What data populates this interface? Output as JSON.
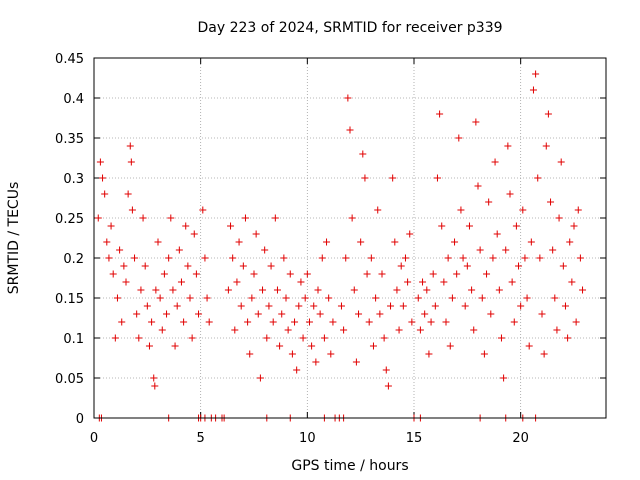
{
  "chart_data": {
    "type": "scatter",
    "title": "Day 223 of 2024, SRMTID for receiver p339",
    "xlabel": "GPS time / hours",
    "ylabel": "SRMTID / TECUs",
    "xlim": [
      0,
      24
    ],
    "ylim": [
      0,
      0.45
    ],
    "grid": true,
    "marker": "plus",
    "color": "#e00000",
    "xticks": [
      0,
      5,
      10,
      15,
      20
    ],
    "xtick_labels": [
      "0",
      "5",
      "10",
      "15",
      "20"
    ],
    "yticks": [
      0,
      0.05,
      0.1,
      0.15,
      0.2,
      0.25,
      0.3,
      0.35,
      0.4,
      0.45
    ],
    "ytick_labels": [
      "0",
      "0.05",
      "0.1",
      "0.15",
      "0.2",
      "0.25",
      "0.3",
      "0.35",
      "0.4",
      "0.45"
    ],
    "series": [
      {
        "name": "SRMTID",
        "points": [
          [
            0.2,
            0.25
          ],
          [
            0.3,
            0.32
          ],
          [
            0.4,
            0.3
          ],
          [
            0.5,
            0.28
          ],
          [
            0.6,
            0.22
          ],
          [
            0.7,
            0.2
          ],
          [
            0.8,
            0.24
          ],
          [
            0.9,
            0.18
          ],
          [
            1.0,
            0.1
          ],
          [
            1.1,
            0.15
          ],
          [
            1.2,
            0.21
          ],
          [
            1.3,
            0.12
          ],
          [
            1.4,
            0.19
          ],
          [
            1.5,
            0.17
          ],
          [
            1.6,
            0.28
          ],
          [
            1.7,
            0.34
          ],
          [
            1.75,
            0.32
          ],
          [
            1.8,
            0.26
          ],
          [
            1.9,
            0.2
          ],
          [
            2.0,
            0.13
          ],
          [
            2.1,
            0.1
          ],
          [
            2.2,
            0.16
          ],
          [
            2.3,
            0.25
          ],
          [
            2.4,
            0.19
          ],
          [
            2.5,
            0.14
          ],
          [
            2.6,
            0.09
          ],
          [
            2.7,
            0.12
          ],
          [
            2.8,
            0.05
          ],
          [
            2.85,
            0.04
          ],
          [
            2.9,
            0.16
          ],
          [
            3.0,
            0.22
          ],
          [
            3.1,
            0.15
          ],
          [
            3.2,
            0.11
          ],
          [
            3.3,
            0.18
          ],
          [
            3.4,
            0.13
          ],
          [
            3.5,
            0.2
          ],
          [
            3.6,
            0.25
          ],
          [
            3.7,
            0.16
          ],
          [
            3.8,
            0.09
          ],
          [
            3.9,
            0.14
          ],
          [
            4.0,
            0.21
          ],
          [
            4.1,
            0.17
          ],
          [
            4.2,
            0.12
          ],
          [
            4.3,
            0.24
          ],
          [
            4.4,
            0.19
          ],
          [
            4.5,
            0.15
          ],
          [
            4.6,
            0.1
          ],
          [
            4.7,
            0.23
          ],
          [
            4.8,
            0.18
          ],
          [
            4.9,
            0.13
          ],
          [
            5.0,
            0.0
          ],
          [
            5.1,
            0.26
          ],
          [
            5.2,
            0.2
          ],
          [
            5.3,
            0.15
          ],
          [
            5.4,
            0.12
          ],
          [
            5.5,
            0.0
          ],
          [
            6.0,
            0.0
          ],
          [
            6.3,
            0.16
          ],
          [
            6.4,
            0.24
          ],
          [
            6.5,
            0.2
          ],
          [
            6.6,
            0.11
          ],
          [
            6.7,
            0.17
          ],
          [
            6.8,
            0.22
          ],
          [
            6.9,
            0.14
          ],
          [
            7.0,
            0.19
          ],
          [
            7.1,
            0.25
          ],
          [
            7.2,
            0.12
          ],
          [
            7.3,
            0.08
          ],
          [
            7.4,
            0.15
          ],
          [
            7.5,
            0.18
          ],
          [
            7.6,
            0.23
          ],
          [
            7.7,
            0.13
          ],
          [
            7.8,
            0.05
          ],
          [
            7.9,
            0.16
          ],
          [
            8.0,
            0.21
          ],
          [
            8.1,
            0.1
          ],
          [
            8.2,
            0.14
          ],
          [
            8.3,
            0.19
          ],
          [
            8.4,
            0.12
          ],
          [
            8.5,
            0.25
          ],
          [
            8.6,
            0.16
          ],
          [
            8.7,
            0.09
          ],
          [
            8.8,
            0.13
          ],
          [
            8.9,
            0.2
          ],
          [
            9.0,
            0.15
          ],
          [
            9.1,
            0.11
          ],
          [
            9.2,
            0.18
          ],
          [
            9.3,
            0.08
          ],
          [
            9.4,
            0.12
          ],
          [
            9.5,
            0.06
          ],
          [
            9.6,
            0.14
          ],
          [
            9.7,
            0.17
          ],
          [
            9.8,
            0.1
          ],
          [
            9.9,
            0.15
          ],
          [
            10.0,
            0.18
          ],
          [
            10.1,
            0.12
          ],
          [
            10.2,
            0.09
          ],
          [
            10.3,
            0.14
          ],
          [
            10.4,
            0.07
          ],
          [
            10.5,
            0.16
          ],
          [
            10.6,
            0.13
          ],
          [
            10.7,
            0.2
          ],
          [
            10.8,
            0.1
          ],
          [
            10.9,
            0.22
          ],
          [
            11.0,
            0.15
          ],
          [
            11.1,
            0.08
          ],
          [
            11.2,
            0.12
          ],
          [
            11.3,
            0.0
          ],
          [
            11.5,
            0.0
          ],
          [
            11.6,
            0.14
          ],
          [
            11.7,
            0.11
          ],
          [
            11.8,
            0.2
          ],
          [
            11.9,
            0.4
          ],
          [
            12.0,
            0.36
          ],
          [
            12.1,
            0.25
          ],
          [
            12.2,
            0.16
          ],
          [
            12.3,
            0.07
          ],
          [
            12.4,
            0.13
          ],
          [
            12.5,
            0.22
          ],
          [
            12.6,
            0.33
          ],
          [
            12.7,
            0.3
          ],
          [
            12.8,
            0.18
          ],
          [
            12.9,
            0.12
          ],
          [
            13.0,
            0.2
          ],
          [
            13.1,
            0.09
          ],
          [
            13.2,
            0.15
          ],
          [
            13.3,
            0.26
          ],
          [
            13.4,
            0.13
          ],
          [
            13.5,
            0.18
          ],
          [
            13.6,
            0.1
          ],
          [
            13.7,
            0.06
          ],
          [
            13.8,
            0.04
          ],
          [
            13.9,
            0.14
          ],
          [
            14.0,
            0.3
          ],
          [
            14.1,
            0.22
          ],
          [
            14.2,
            0.16
          ],
          [
            14.3,
            0.11
          ],
          [
            14.4,
            0.19
          ],
          [
            14.5,
            0.14
          ],
          [
            14.6,
            0.2
          ],
          [
            14.7,
            0.17
          ],
          [
            14.8,
            0.23
          ],
          [
            14.9,
            0.12
          ],
          [
            15.0,
            0.0
          ],
          [
            15.2,
            0.15
          ],
          [
            15.3,
            0.11
          ],
          [
            15.4,
            0.17
          ],
          [
            15.5,
            0.13
          ],
          [
            15.6,
            0.16
          ],
          [
            15.7,
            0.08
          ],
          [
            15.8,
            0.12
          ],
          [
            15.9,
            0.18
          ],
          [
            16.0,
            0.14
          ],
          [
            16.1,
            0.3
          ],
          [
            16.2,
            0.38
          ],
          [
            16.3,
            0.24
          ],
          [
            16.4,
            0.17
          ],
          [
            16.5,
            0.12
          ],
          [
            16.6,
            0.2
          ],
          [
            16.7,
            0.09
          ],
          [
            16.8,
            0.15
          ],
          [
            16.9,
            0.22
          ],
          [
            17.0,
            0.18
          ],
          [
            17.1,
            0.35
          ],
          [
            17.2,
            0.26
          ],
          [
            17.3,
            0.2
          ],
          [
            17.4,
            0.14
          ],
          [
            17.5,
            0.19
          ],
          [
            17.6,
            0.24
          ],
          [
            17.7,
            0.16
          ],
          [
            17.8,
            0.11
          ],
          [
            17.9,
            0.37
          ],
          [
            18.0,
            0.29
          ],
          [
            18.1,
            0.21
          ],
          [
            18.2,
            0.15
          ],
          [
            18.3,
            0.08
          ],
          [
            18.4,
            0.18
          ],
          [
            18.5,
            0.27
          ],
          [
            18.6,
            0.13
          ],
          [
            18.7,
            0.2
          ],
          [
            18.8,
            0.32
          ],
          [
            18.9,
            0.23
          ],
          [
            19.0,
            0.16
          ],
          [
            19.1,
            0.1
          ],
          [
            19.2,
            0.05
          ],
          [
            19.3,
            0.21
          ],
          [
            19.4,
            0.34
          ],
          [
            19.5,
            0.28
          ],
          [
            19.6,
            0.17
          ],
          [
            19.7,
            0.12
          ],
          [
            19.8,
            0.24
          ],
          [
            19.9,
            0.19
          ],
          [
            20.0,
            0.14
          ],
          [
            20.1,
            0.26
          ],
          [
            20.2,
            0.2
          ],
          [
            20.3,
            0.15
          ],
          [
            20.4,
            0.09
          ],
          [
            20.5,
            0.22
          ],
          [
            20.6,
            0.41
          ],
          [
            20.7,
            0.43
          ],
          [
            20.8,
            0.3
          ],
          [
            20.9,
            0.2
          ],
          [
            21.0,
            0.13
          ],
          [
            21.1,
            0.08
          ],
          [
            21.2,
            0.34
          ],
          [
            21.3,
            0.38
          ],
          [
            21.4,
            0.27
          ],
          [
            21.5,
            0.21
          ],
          [
            21.6,
            0.15
          ],
          [
            21.7,
            0.11
          ],
          [
            21.8,
            0.25
          ],
          [
            21.9,
            0.32
          ],
          [
            22.0,
            0.19
          ],
          [
            22.1,
            0.14
          ],
          [
            22.2,
            0.1
          ],
          [
            22.3,
            0.22
          ],
          [
            22.4,
            0.17
          ],
          [
            22.5,
            0.24
          ],
          [
            22.6,
            0.12
          ],
          [
            22.7,
            0.26
          ],
          [
            22.8,
            0.2
          ],
          [
            22.9,
            0.16
          ],
          [
            0.25,
            0.0
          ],
          [
            0.35,
            0.0
          ],
          [
            3.5,
            0.0
          ],
          [
            4.9,
            0.0
          ],
          [
            5.2,
            0.0
          ],
          [
            5.7,
            0.0
          ],
          [
            6.1,
            0.0
          ],
          [
            8.1,
            0.0
          ],
          [
            9.2,
            0.0
          ],
          [
            10.8,
            0.0
          ],
          [
            11.7,
            0.0
          ],
          [
            15.3,
            0.0
          ],
          [
            18.1,
            0.0
          ],
          [
            19.3,
            0.0
          ],
          [
            20.1,
            0.0
          ],
          [
            20.7,
            0.0
          ]
        ]
      }
    ]
  }
}
